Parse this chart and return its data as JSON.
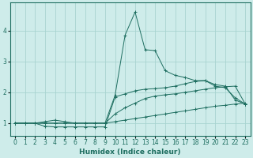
{
  "xlabel": "Humidex (Indice chaleur)",
  "xlim": [
    -0.5,
    23.5
  ],
  "ylim": [
    0.6,
    4.9
  ],
  "background_color": "#ceecea",
  "grid_color": "#a8d4d0",
  "line_color": "#1e6e60",
  "lines": [
    {
      "x": [
        0,
        1,
        2,
        3,
        4,
        5,
        6,
        7,
        8,
        9,
        10,
        11,
        12,
        13,
        14,
        15,
        16,
        17,
        18,
        19,
        20,
        21,
        22,
        23
      ],
      "y": [
        1.0,
        1.0,
        1.0,
        1.0,
        1.0,
        1.0,
        1.0,
        1.0,
        1.0,
        1.0,
        1.05,
        1.1,
        1.15,
        1.2,
        1.25,
        1.3,
        1.35,
        1.4,
        1.45,
        1.5,
        1.55,
        1.58,
        1.62,
        1.65
      ]
    },
    {
      "x": [
        0,
        1,
        2,
        3,
        4,
        5,
        6,
        7,
        8,
        9,
        10,
        11,
        12,
        13,
        14,
        15,
        16,
        17,
        18,
        19,
        20,
        21,
        22,
        23
      ],
      "y": [
        1.0,
        1.0,
        1.0,
        1.05,
        1.1,
        1.05,
        1.0,
        1.0,
        1.0,
        1.0,
        1.3,
        1.5,
        1.65,
        1.8,
        1.88,
        1.92,
        1.95,
        2.0,
        2.05,
        2.1,
        2.15,
        2.18,
        2.2,
        1.62
      ]
    },
    {
      "x": [
        0,
        1,
        2,
        3,
        4,
        5,
        6,
        7,
        8,
        9,
        10,
        11,
        12,
        13,
        14,
        15,
        16,
        17,
        18,
        19,
        20,
        21,
        22,
        23
      ],
      "y": [
        1.0,
        1.0,
        1.0,
        0.9,
        0.88,
        0.88,
        0.88,
        0.88,
        0.88,
        0.88,
        1.85,
        1.95,
        2.05,
        2.1,
        2.12,
        2.15,
        2.2,
        2.28,
        2.35,
        2.38,
        2.2,
        2.15,
        1.82,
        1.62
      ]
    },
    {
      "x": [
        0,
        1,
        2,
        3,
        4,
        5,
        6,
        7,
        8,
        9,
        10,
        11,
        12,
        13,
        14,
        15,
        16,
        17,
        18,
        19,
        20,
        21,
        22,
        23
      ],
      "y": [
        1.0,
        1.0,
        1.0,
        1.0,
        1.0,
        1.0,
        1.0,
        1.0,
        1.0,
        1.0,
        1.9,
        3.85,
        4.6,
        3.38,
        3.35,
        2.7,
        2.55,
        2.48,
        2.38,
        2.38,
        2.25,
        2.2,
        1.75,
        1.62
      ]
    }
  ],
  "xticks": [
    0,
    1,
    2,
    3,
    4,
    5,
    6,
    7,
    8,
    9,
    10,
    11,
    12,
    13,
    14,
    15,
    16,
    17,
    18,
    19,
    20,
    21,
    22,
    23
  ],
  "yticks": [
    1,
    2,
    3,
    4
  ],
  "tick_fontsize": 5.5,
  "xlabel_fontsize": 6.5
}
